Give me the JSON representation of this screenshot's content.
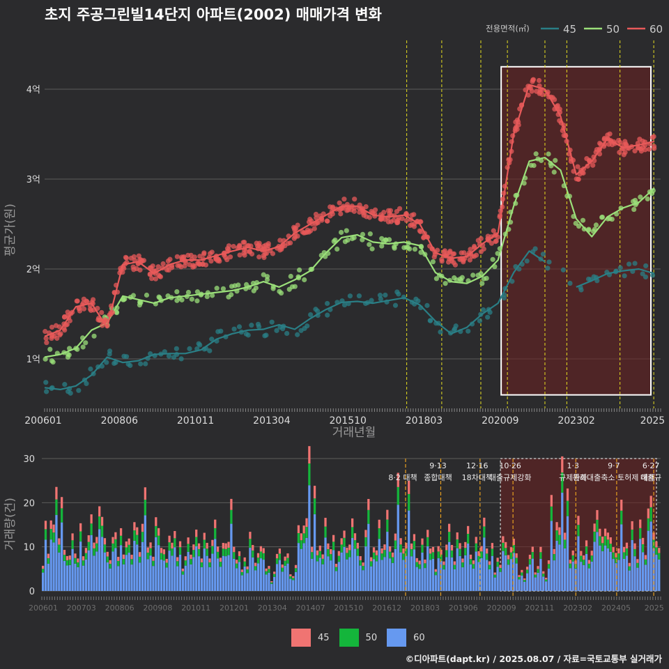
{
  "title": "초지 주공그린빌14단지 아파트(2002) 매매가격 변화",
  "legend_top": {
    "label": "전용면적(㎡)",
    "items": [
      {
        "name": "45",
        "color": "#2a7f86"
      },
      {
        "name": "50",
        "color": "#9be07a"
      },
      {
        "name": "60",
        "color": "#e85a5a"
      }
    ]
  },
  "credit": "©디아파트(dapt.kr) / 2025.08.07 / 자료=국토교통부 실거래가",
  "colors": {
    "bg": "#2b2b2d",
    "grid": "#5a5a5a",
    "policy": "#e8e020",
    "highlight": "#5a1e1e"
  },
  "chart_data": [
    {
      "type": "line",
      "title": "초지 주공그린빌14단지 아파트(2002) 매매가격 변화",
      "xlabel": "거래년월",
      "ylabel": "평균가(원)",
      "x_ticks": [
        "200601",
        "200806",
        "201011",
        "201304",
        "201510",
        "201803",
        "202009",
        "202302",
        "2025"
      ],
      "y_ticks": [
        {
          "v": 1,
          "label": "1억"
        },
        {
          "v": 2,
          "label": "2억"
        },
        {
          "v": 3,
          "label": "3억"
        },
        {
          "v": 4,
          "label": "4억"
        }
      ],
      "ylim": [
        0.45,
        4.45
      ],
      "xlim": [
        2006.0,
        2025.7
      ],
      "policy_lines": [
        2017.58,
        2018.7,
        2019.95,
        2020.8,
        2022.0,
        2022.7,
        2024.4,
        2025.48
      ],
      "highlight": {
        "x0": 2020.6,
        "x1": 2025.7,
        "y0": 0.6,
        "y1": 4.25
      },
      "series": [
        {
          "name": "45",
          "color": "#2a7f86",
          "x": [
            2006.0,
            2006.5,
            2007.0,
            2007.5,
            2008.0,
            2008.5,
            2009.0,
            2009.5,
            2010.0,
            2010.5,
            2011.0,
            2011.5,
            2012.0,
            2012.5,
            2013.0,
            2013.5,
            2014.0,
            2014.5,
            2015.0,
            2015.5,
            2016.0,
            2016.5,
            2017.0,
            2017.5,
            2018.0,
            2018.5,
            2019.0,
            2019.5,
            2020.0,
            2020.5,
            2021.0,
            2021.5,
            2022.0,
            2022.5,
            2023.0,
            2023.5,
            2024.0,
            2024.5,
            2025.0,
            2025.5
          ],
          "values": [
            0.68,
            0.66,
            0.7,
            0.82,
            1.02,
            0.96,
            0.98,
            1.05,
            1.06,
            1.06,
            1.1,
            1.22,
            1.28,
            1.32,
            1.33,
            1.38,
            1.33,
            1.45,
            1.55,
            1.63,
            1.64,
            1.62,
            1.65,
            1.68,
            1.6,
            1.42,
            1.28,
            1.35,
            1.5,
            1.62,
            1.96,
            2.2,
            2.08,
            null,
            1.8,
            1.87,
            1.95,
            1.98,
            2.0,
            1.95
          ]
        },
        {
          "name": "50",
          "color": "#9be07a",
          "x": [
            2006.0,
            2006.5,
            2007.0,
            2007.5,
            2008.0,
            2008.5,
            2009.0,
            2009.5,
            2010.0,
            2010.5,
            2011.0,
            2011.5,
            2012.0,
            2012.5,
            2013.0,
            2013.5,
            2014.0,
            2014.5,
            2015.0,
            2015.5,
            2016.0,
            2016.5,
            2017.0,
            2017.5,
            2018.0,
            2018.5,
            2019.0,
            2019.5,
            2020.0,
            2020.5,
            2021.0,
            2021.5,
            2022.0,
            2022.5,
            2023.0,
            2023.5,
            2024.0,
            2024.5,
            2025.0,
            2025.5
          ],
          "values": [
            1.02,
            1.05,
            1.12,
            1.32,
            1.4,
            1.7,
            1.66,
            1.62,
            1.68,
            1.7,
            1.72,
            1.74,
            1.76,
            1.8,
            1.86,
            1.8,
            1.88,
            1.98,
            2.18,
            2.35,
            2.38,
            2.3,
            2.28,
            2.3,
            2.26,
            1.96,
            1.86,
            1.84,
            1.92,
            2.1,
            2.7,
            3.2,
            3.24,
            3.1,
            2.56,
            2.36,
            2.58,
            2.68,
            2.74,
            2.9
          ]
        },
        {
          "name": "60",
          "color": "#e85a5a",
          "x": [
            2006.0,
            2006.5,
            2007.0,
            2007.5,
            2008.0,
            2008.5,
            2009.0,
            2009.5,
            2010.0,
            2010.5,
            2011.0,
            2011.5,
            2012.0,
            2012.5,
            2013.0,
            2013.5,
            2014.0,
            2014.5,
            2015.0,
            2015.5,
            2016.0,
            2016.5,
            2017.0,
            2017.5,
            2018.0,
            2018.5,
            2019.0,
            2019.5,
            2020.0,
            2020.5,
            2021.0,
            2021.5,
            2022.0,
            2022.5,
            2023.0,
            2023.5,
            2024.0,
            2024.5,
            2025.0,
            2025.5
          ],
          "values": [
            1.25,
            1.32,
            1.58,
            1.62,
            1.35,
            2.05,
            2.08,
            1.95,
            2.05,
            2.1,
            2.1,
            2.15,
            2.2,
            2.24,
            2.2,
            2.25,
            2.4,
            2.5,
            2.6,
            2.7,
            2.7,
            2.6,
            2.58,
            2.6,
            2.5,
            2.18,
            2.12,
            2.14,
            2.28,
            2.4,
            3.5,
            4.05,
            4.0,
            3.7,
            3.05,
            3.2,
            3.45,
            3.35,
            3.38,
            3.42
          ]
        }
      ]
    },
    {
      "type": "bar",
      "xlabel": "",
      "ylabel": "거래량(건)",
      "x_ticks": [
        "200601",
        "200703",
        "200806",
        "200908",
        "201011",
        "201201",
        "201304",
        "201407",
        "201510",
        "201612",
        "201803",
        "201906",
        "202009",
        "202111",
        "202302",
        "202405",
        "2025"
      ],
      "y_ticks": [
        0,
        10,
        20,
        30
      ],
      "ylim": [
        0,
        30
      ],
      "legend": [
        "45",
        "50",
        "60"
      ],
      "colors": {
        "45": "#f07472",
        "50": "#14b53b",
        "60": "#6699f0"
      },
      "policy_events": [
        {
          "x": 2017.58,
          "label1": "",
          "label2": "8·2 대책"
        },
        {
          "x": 2018.7,
          "label1": "9·13",
          "label2": "종합대책"
        },
        {
          "x": 2019.95,
          "label1": "12·16",
          "label2": "18차대책"
        },
        {
          "x": 2021.0,
          "label1": "10·26",
          "label2": "대출규제강화"
        },
        {
          "x": 2023.0,
          "label1": "1·3",
          "label2": "규제완화"
        },
        {
          "x": 2024.3,
          "label1": "9·7",
          "label2": "특례대출축소 토허제 해제"
        },
        {
          "x": 2025.48,
          "label1": "6·27",
          "label2": "대출규"
        }
      ],
      "highlight": {
        "x0": 2020.6,
        "x1": 2025.7
      },
      "totals_sample": [
        7,
        21,
        12,
        17,
        16,
        30,
        14,
        22,
        9,
        11,
        8,
        16,
        12,
        9,
        14,
        8,
        10,
        15,
        19,
        13,
        12,
        18,
        17,
        12,
        11,
        9,
        13,
        19,
        10,
        14,
        9,
        15,
        12,
        10,
        18,
        14,
        9,
        17,
        26,
        13,
        11,
        10,
        23,
        15,
        12,
        9,
        8,
        16,
        10,
        13,
        9,
        11,
        7,
        10,
        12,
        9,
        14,
        17,
        11,
        8,
        13,
        10,
        7,
        12,
        16,
        11,
        9,
        12,
        10,
        14,
        22,
        11,
        7,
        10,
        5,
        9,
        6,
        13,
        12,
        8,
        10,
        12,
        9,
        5,
        6,
        3,
        5,
        9,
        13,
        6,
        8,
        10,
        5,
        4
      ]
    }
  ]
}
